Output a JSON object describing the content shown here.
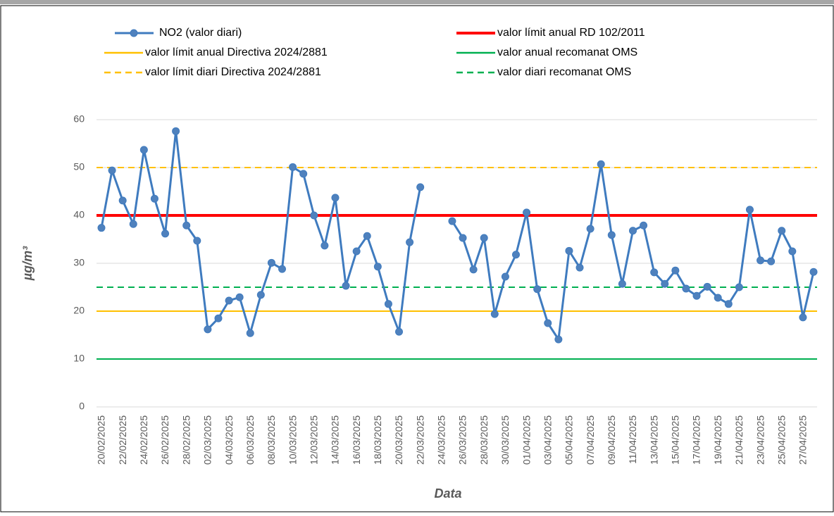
{
  "chart_data": {
    "type": "line",
    "x_label": "Data",
    "y_label": "µg/m³",
    "categories": [
      "20/02/2025",
      null,
      "22/02/2025",
      null,
      "24/02/2025",
      null,
      "26/02/2025",
      null,
      "28/02/2025",
      null,
      "02/03/2025",
      null,
      "04/03/2025",
      null,
      "06/03/2025",
      null,
      "08/03/2025",
      null,
      "10/03/2025",
      null,
      "12/03/2025",
      null,
      "14/03/2025",
      null,
      "16/03/2025",
      null,
      "18/03/2025",
      null,
      "20/03/2025",
      null,
      "22/03/2025",
      null,
      "24/03/2025",
      null,
      "26/03/2025",
      null,
      "28/03/2025",
      null,
      "30/03/2025",
      null,
      "01/04/2025",
      null,
      "03/04/2025",
      null,
      "05/04/2025",
      null,
      "07/04/2025",
      null,
      "09/04/2025",
      null,
      "11/04/2025",
      null,
      "13/04/2025",
      null,
      "15/04/2025",
      null,
      "17/04/2025",
      null,
      "19/04/2025",
      null,
      "21/04/2025",
      null,
      "23/04/2025",
      null,
      "25/04/2025",
      null,
      "27/04/2025",
      null
    ],
    "series": [
      {
        "name": "NO2 (valor diari)",
        "color": "#3f7bbf",
        "values": [
          37.4,
          49.4,
          43.1,
          38.2,
          53.7,
          43.5,
          36.2,
          57.6,
          37.9,
          34.7,
          16.2,
          18.5,
          22.2,
          22.9,
          15.4,
          23.4,
          30.1,
          28.8,
          50.1,
          48.7,
          40.0,
          33.7,
          43.7,
          25.3,
          32.5,
          35.7,
          29.3,
          21.5,
          15.7,
          34.4,
          45.9,
          null,
          null,
          38.8,
          35.3,
          28.7,
          35.3,
          19.4,
          27.2,
          31.8,
          40.6,
          24.6,
          17.5,
          14.1,
          32.6,
          29.1,
          37.2,
          50.7,
          35.9,
          25.7,
          36.8,
          37.9,
          28.1,
          25.7,
          28.5,
          24.7,
          23.2,
          25.1,
          22.8,
          21.5,
          25.0,
          41.2,
          30.6,
          30.4,
          36.8,
          32.5,
          18.7,
          28.2
        ]
      }
    ],
    "reference_lines": [
      {
        "name": "valor límit anual RD 102/2011",
        "value": 40,
        "color": "#ff0000",
        "dashed": false,
        "width": 4
      },
      {
        "name": "valor límit anual Directiva 2024/2881",
        "value": 20,
        "color": "#ffc000",
        "dashed": false,
        "width": 2
      },
      {
        "name": "valor anual recomanat OMS",
        "value": 10,
        "color": "#00b050",
        "dashed": false,
        "width": 2
      },
      {
        "name": "valor límit diari Directiva 2024/2881",
        "value": 50,
        "color": "#ffc000",
        "dashed": true,
        "width": 2
      },
      {
        "name": "valor diari recomanat OMS",
        "value": 25,
        "color": "#00b050",
        "dashed": true,
        "width": 2
      }
    ],
    "ylim": [
      0,
      60
    ],
    "yticks": [
      0,
      10,
      20,
      30,
      40,
      50,
      60
    ],
    "grid": true
  }
}
